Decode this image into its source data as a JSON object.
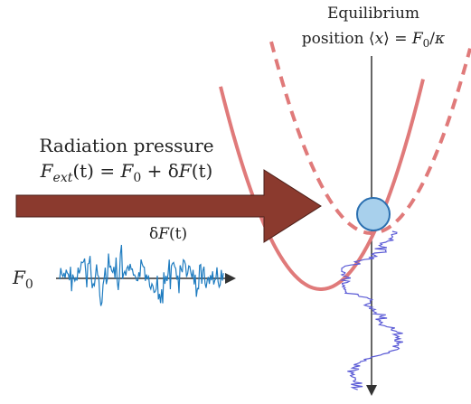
{
  "labels": {
    "equilibrium_line1": "Equilibrium",
    "equilibrium_line2": [
      "position ⟨",
      "x",
      "⟩ = ",
      "F",
      "0",
      "/",
      "κ"
    ],
    "radiation_line1": "Radiation pressure",
    "radiation_line2": [
      "F",
      "ext",
      "(t) = ",
      "F",
      "0",
      " + δ",
      "F",
      "(t)"
    ],
    "noise_label": [
      "δ",
      "F",
      "(t)"
    ],
    "f0_label": [
      "F",
      "0"
    ]
  }
}
